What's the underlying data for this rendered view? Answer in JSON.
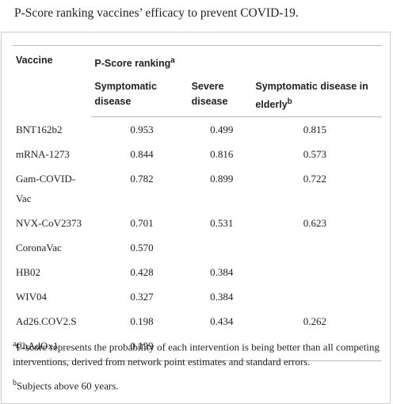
{
  "title": "P-Score ranking vaccines’ efficacy to prevent COVID-19.",
  "table": {
    "headers": {
      "vaccine": "Vaccine",
      "group": "P-Score ranking",
      "group_note": "a",
      "columns": [
        {
          "label": "Symptomatic disease"
        },
        {
          "label": "Severe disease"
        },
        {
          "label": "Symptomatic disease in elderly",
          "note": "b"
        }
      ]
    },
    "rows": [
      [
        "BNT162b2",
        "0.953",
        "0.499",
        "0.815"
      ],
      [
        "mRNA-1273",
        "0.844",
        "0.816",
        "0.573"
      ],
      [
        "Gam-COVID-Vac",
        "0.782",
        "0.899",
        "0.722"
      ],
      [
        "NVX-CoV2373",
        "0.701",
        "0.531",
        "0.623"
      ],
      [
        "CoronaVac",
        "0.570",
        null,
        null
      ],
      [
        "HB02",
        "0.428",
        "0.384",
        null
      ],
      [
        "WIV04",
        "0.327",
        "0.384",
        null
      ],
      [
        "Ad26.COV2.S",
        "0.198",
        "0.434",
        "0.262"
      ],
      [
        "ChAdOx1",
        "0.199",
        null,
        null
      ]
    ]
  },
  "footnotes": [
    {
      "mark": "a",
      "text": "P-score represents the probability of each intervention is being better than all competing interventions, derived from network point estimates and standard errors."
    },
    {
      "mark": "b",
      "text": "Subjects above 60 years."
    }
  ]
}
